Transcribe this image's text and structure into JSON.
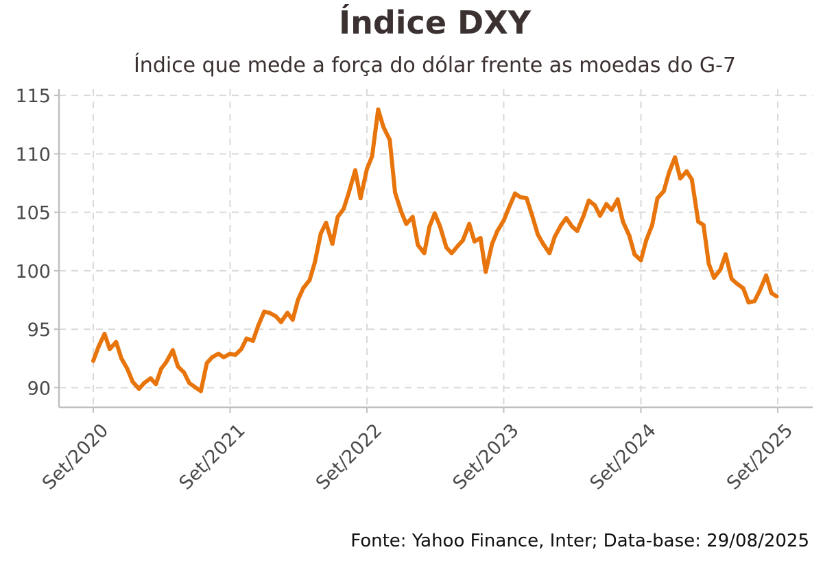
{
  "title": "Índice DXY",
  "subtitle": "Índice que mede a força do dólar frente as moedas do G-7",
  "caption": "Fonte: Yahoo Finance, Inter; Data-base: 29/08/2025",
  "colors": {
    "line": "#E8740C",
    "grid": "#d9d9d9",
    "axis": "#bfbfbf"
  },
  "chart_data": {
    "type": "line",
    "title": "Índice DXY",
    "subtitle": "Índice que mede a força do dólar frente as moedas do G-7",
    "xlabel": "",
    "ylabel": "",
    "xlim": [
      "2020-09-01",
      "2025-09-01"
    ],
    "ylim": [
      88.2,
      115.3
    ],
    "grid": true,
    "legend": "none",
    "x_ticks": [
      {
        "label": "Set/2020",
        "x": "2020-09-01"
      },
      {
        "label": "Set/2021",
        "x": "2021-09-01"
      },
      {
        "label": "Set/2022",
        "x": "2022-09-01"
      },
      {
        "label": "Set/2023",
        "x": "2023-09-01"
      },
      {
        "label": "Set/2024",
        "x": "2024-09-01"
      },
      {
        "label": "Set/2025",
        "x": "2025-09-01"
      }
    ],
    "y_ticks": [
      90,
      95,
      100,
      105,
      110,
      115
    ],
    "series": [
      {
        "x": [
          "2020-09-01",
          "2020-09-15",
          "2020-10-01",
          "2020-10-15",
          "2020-11-01",
          "2020-11-15",
          "2020-12-01",
          "2020-12-15",
          "2021-01-01",
          "2021-01-15",
          "2021-02-01",
          "2021-02-15",
          "2021-03-01",
          "2021-03-15",
          "2021-04-01",
          "2021-04-15",
          "2021-05-01",
          "2021-05-15",
          "2021-06-01",
          "2021-06-15",
          "2021-07-01",
          "2021-07-15",
          "2021-08-01",
          "2021-08-15",
          "2021-09-01",
          "2021-09-15",
          "2021-10-01",
          "2021-10-15",
          "2021-11-01",
          "2021-11-15",
          "2021-12-01",
          "2021-12-15",
          "2022-01-01",
          "2022-01-15",
          "2022-02-01",
          "2022-02-15",
          "2022-03-01",
          "2022-03-15",
          "2022-04-01",
          "2022-04-15",
          "2022-05-01",
          "2022-05-15",
          "2022-06-01",
          "2022-06-15",
          "2022-07-01",
          "2022-07-15",
          "2022-08-01",
          "2022-08-15",
          "2022-09-01",
          "2022-09-15",
          "2022-10-01",
          "2022-10-15",
          "2022-11-01",
          "2022-11-15",
          "2022-12-01",
          "2022-12-15",
          "2023-01-01",
          "2023-01-15",
          "2023-02-01",
          "2023-02-15",
          "2023-03-01",
          "2023-03-15",
          "2023-04-01",
          "2023-04-15",
          "2023-05-01",
          "2023-05-15",
          "2023-06-01",
          "2023-06-15",
          "2023-07-01",
          "2023-07-15",
          "2023-08-01",
          "2023-08-15",
          "2023-09-01",
          "2023-09-15",
          "2023-10-01",
          "2023-10-15",
          "2023-11-01",
          "2023-11-15",
          "2023-12-01",
          "2023-12-15",
          "2024-01-01",
          "2024-01-15",
          "2024-02-01",
          "2024-02-15",
          "2024-03-01",
          "2024-03-15",
          "2024-04-01",
          "2024-04-15",
          "2024-05-01",
          "2024-05-15",
          "2024-06-01",
          "2024-06-15",
          "2024-07-01",
          "2024-07-15",
          "2024-08-01",
          "2024-08-15",
          "2024-09-01",
          "2024-09-15",
          "2024-10-01",
          "2024-10-15",
          "2024-11-01",
          "2024-11-15",
          "2024-12-01",
          "2024-12-15",
          "2025-01-01",
          "2025-01-15",
          "2025-02-01",
          "2025-02-15",
          "2025-03-01",
          "2025-03-15",
          "2025-04-01",
          "2025-04-15",
          "2025-05-01",
          "2025-05-15",
          "2025-06-01",
          "2025-06-15",
          "2025-07-01",
          "2025-07-15",
          "2025-08-01",
          "2025-08-15",
          "2025-08-29"
        ],
        "values": [
          92.3,
          93.5,
          94.6,
          93.3,
          93.9,
          92.5,
          91.6,
          90.5,
          89.9,
          90.4,
          90.8,
          90.3,
          91.6,
          92.2,
          93.2,
          91.8,
          91.3,
          90.4,
          90.0,
          89.7,
          92.1,
          92.6,
          92.9,
          92.6,
          92.9,
          92.8,
          93.3,
          94.2,
          94.0,
          95.3,
          96.5,
          96.4,
          96.1,
          95.6,
          96.4,
          95.8,
          97.5,
          98.5,
          99.2,
          100.7,
          103.2,
          104.1,
          102.3,
          104.6,
          105.3,
          106.7,
          108.6,
          106.2,
          108.7,
          109.8,
          113.8,
          112.3,
          111.2,
          106.7,
          105.1,
          104.0,
          104.6,
          102.2,
          101.5,
          103.8,
          104.9,
          103.8,
          102.0,
          101.5,
          102.1,
          102.6,
          104.0,
          102.5,
          102.8,
          99.9,
          102.3,
          103.4,
          104.3,
          105.4,
          106.6,
          106.3,
          106.2,
          104.8,
          103.1,
          102.3,
          101.5,
          102.9,
          103.9,
          104.5,
          103.8,
          103.4,
          104.7,
          106.0,
          105.6,
          104.7,
          105.7,
          105.2,
          106.1,
          104.2,
          103.0,
          101.4,
          100.9,
          102.6,
          103.9,
          106.2,
          106.8,
          108.4,
          109.7,
          107.9,
          108.5,
          107.8,
          104.2,
          103.9,
          100.6,
          99.4,
          100.1,
          101.4,
          99.3,
          98.9,
          98.5,
          97.3,
          97.4,
          98.3,
          99.6,
          98.1,
          97.8
        ]
      }
    ]
  }
}
